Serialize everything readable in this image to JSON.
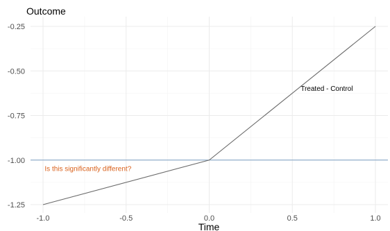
{
  "chart_data": {
    "type": "line",
    "title": "",
    "xlabel": "Time",
    "ylabel": "Outcome",
    "xlim": [
      -1.0,
      1.0
    ],
    "ylim": [
      -1.25,
      -0.25
    ],
    "x_ticks": [
      "-1.0",
      "-0.5",
      "0.0",
      "0.5",
      "1.0"
    ],
    "y_ticks": [
      "-0.25",
      "-0.50",
      "-0.75",
      "-1.00",
      "-1.25"
    ],
    "grid": true,
    "series": [
      {
        "name": "Treated - Control",
        "color": "#6b6b6b",
        "x": [
          -1.0,
          0.0,
          1.0
        ],
        "y": [
          -1.25,
          -1.0,
          -0.25
        ]
      }
    ],
    "hline": {
      "y": -1.0,
      "color": "#7a9ec2"
    },
    "annotations": [
      {
        "text": "Treated - Control",
        "x": 0.55,
        "y": -0.6,
        "color": "#000000"
      },
      {
        "text": "Is this significantly different?",
        "x": -0.99,
        "y": -1.05,
        "color": "#d9601a"
      }
    ]
  }
}
